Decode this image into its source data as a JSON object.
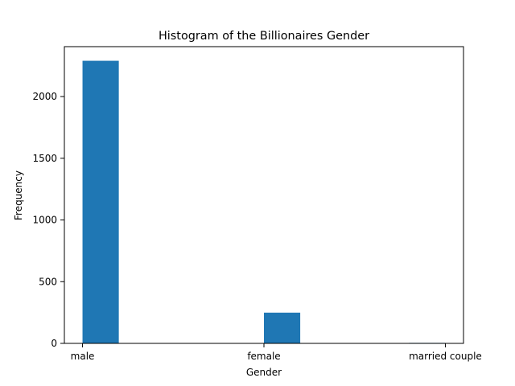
{
  "chart_data": {
    "type": "bar",
    "title": "Histogram of the Billionaires Gender",
    "xlabel": "Gender",
    "ylabel": "Frequency",
    "categories": [
      "male",
      "female",
      "married couple"
    ],
    "values": [
      2290,
      249,
      4
    ],
    "x_ticks": [
      {
        "label": "male",
        "x": 0
      },
      {
        "label": "female",
        "x": 1
      },
      {
        "label": "married couple",
        "x": 2
      }
    ],
    "bins": [
      {
        "x0": 0.0,
        "x1": 0.2,
        "value": 2290
      },
      {
        "x0": 0.2,
        "x1": 0.4,
        "value": 0
      },
      {
        "x0": 0.4,
        "x1": 0.6,
        "value": 0
      },
      {
        "x0": 0.6,
        "x1": 0.8,
        "value": 0
      },
      {
        "x0": 0.8,
        "x1": 1.0,
        "value": 0
      },
      {
        "x0": 1.0,
        "x1": 1.2,
        "value": 249
      },
      {
        "x0": 1.2,
        "x1": 1.4,
        "value": 0
      },
      {
        "x0": 1.4,
        "x1": 1.6,
        "value": 0
      },
      {
        "x0": 1.6,
        "x1": 1.8,
        "value": 0
      },
      {
        "x0": 1.8,
        "x1": 2.0,
        "value": 4
      }
    ],
    "xlim": [
      -0.1,
      2.1
    ],
    "ylim": [
      0,
      2404.5
    ],
    "y_ticks": [
      0,
      500,
      1000,
      1500,
      2000
    ],
    "bar_color": "#1f77b4",
    "grid": false,
    "legend": "none"
  }
}
